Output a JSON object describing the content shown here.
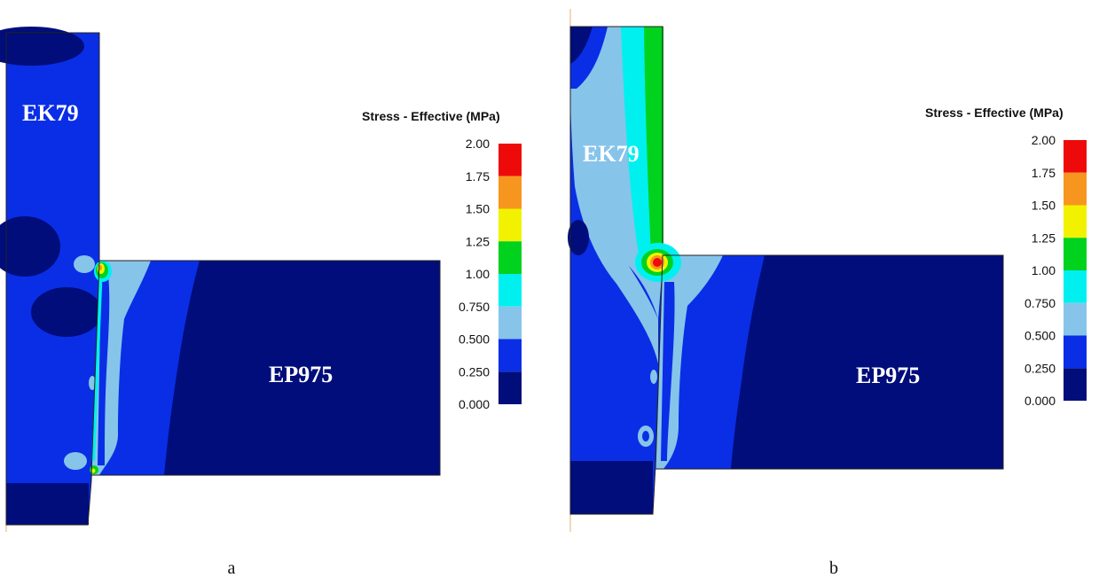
{
  "panels": [
    {
      "caption": "a",
      "upper_label": "EK79",
      "lower_label": "EP975",
      "legend_title": "Stress - Effective (MPa)",
      "legend_ticks": [
        "2.00",
        "1.75",
        "1.50",
        "1.25",
        "1.00",
        "0.750",
        "0.500",
        "0.250",
        "0.000"
      ]
    },
    {
      "caption": "b",
      "upper_label": "EK79",
      "lower_label": "EP975",
      "legend_title": "Stress - Effective (MPa)",
      "legend_ticks": [
        "2.00",
        "1.75",
        "1.50",
        "1.25",
        "1.00",
        "0.750",
        "0.500",
        "0.250",
        "0.000"
      ]
    }
  ],
  "colors": {
    "level_0": "#000d7a",
    "level_1": "#0a2ee6",
    "level_2": "#87c4ea",
    "level_3": "#00f0f0",
    "level_4": "#00d21e",
    "level_5": "#f2f200",
    "level_6": "#f7961e",
    "level_7": "#ee0a0a"
  }
}
